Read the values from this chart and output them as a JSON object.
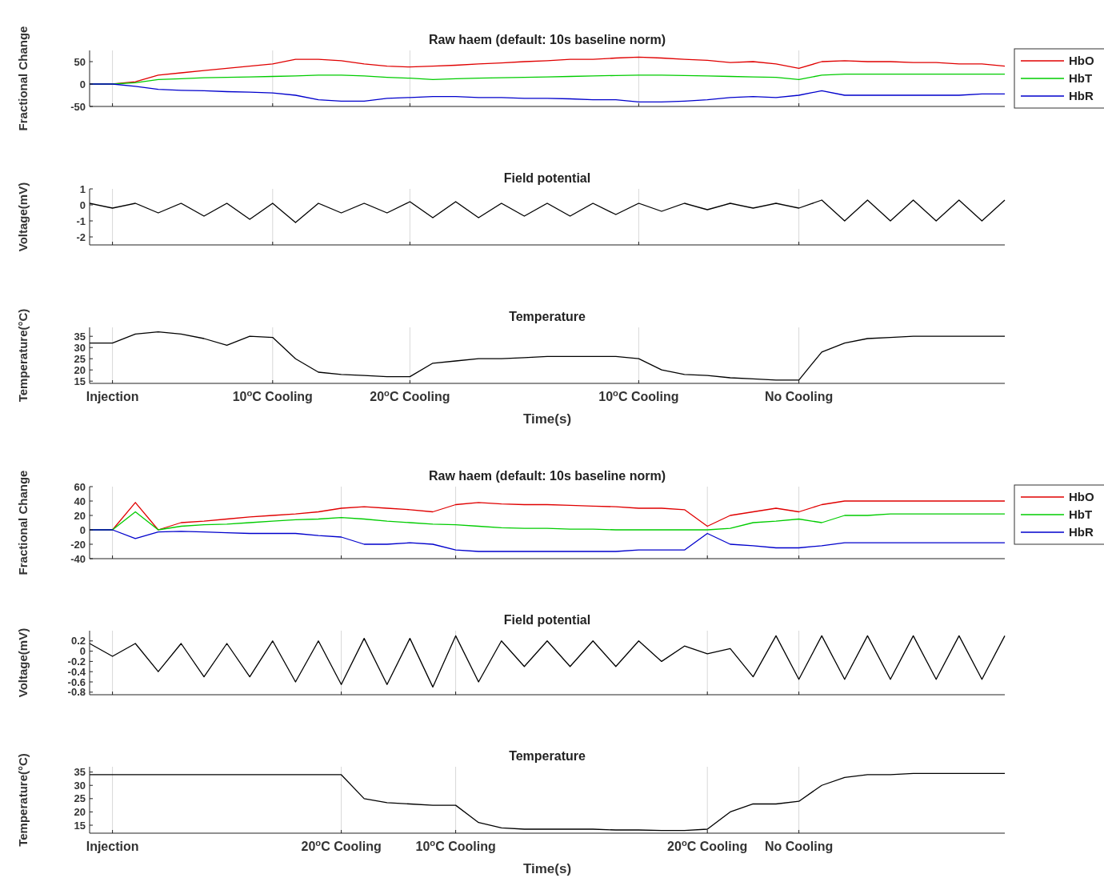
{
  "chart_data": [
    {
      "type": "line",
      "title": "Raw haem (default: 10s baseline norm)",
      "ylabel": "Fractional Change",
      "ylim": [
        -50,
        75
      ],
      "yticks": [
        -50,
        0,
        50
      ],
      "tick_labels": "y",
      "grid": "x",
      "legend": "right",
      "categories": [
        null,
        null,
        null,
        null,
        null,
        null,
        null,
        null,
        null,
        null,
        null,
        null,
        null,
        null,
        null,
        null,
        null,
        null,
        null,
        null,
        null,
        null,
        null,
        null,
        null,
        null,
        null,
        null,
        null,
        null,
        null,
        null,
        null,
        null,
        null,
        null,
        null,
        null,
        null,
        null,
        null
      ],
      "series": [
        {
          "name": "HbO",
          "color": "#e00000",
          "values": [
            0,
            0,
            5,
            20,
            25,
            30,
            35,
            40,
            45,
            55,
            55,
            52,
            45,
            40,
            38,
            40,
            42,
            45,
            47,
            50,
            52,
            55,
            55,
            58,
            60,
            58,
            55,
            53,
            48,
            50,
            45,
            35,
            50,
            52,
            50,
            50,
            48,
            48,
            45,
            45,
            40
          ]
        },
        {
          "name": "HbT",
          "color": "#00cc00",
          "values": [
            0,
            0,
            3,
            10,
            12,
            14,
            15,
            16,
            17,
            18,
            20,
            20,
            18,
            15,
            13,
            10,
            12,
            13,
            14,
            15,
            16,
            17,
            18,
            19,
            20,
            20,
            19,
            18,
            17,
            16,
            15,
            10,
            20,
            22,
            22,
            22,
            22,
            22,
            22,
            22,
            22
          ]
        },
        {
          "name": "HbR",
          "color": "#0000cc",
          "values": [
            0,
            0,
            -5,
            -12,
            -14,
            -15,
            -17,
            -18,
            -20,
            -25,
            -35,
            -38,
            -38,
            -32,
            -30,
            -28,
            -28,
            -30,
            -30,
            -32,
            -32,
            -33,
            -35,
            -35,
            -40,
            -40,
            -38,
            -35,
            -30,
            -28,
            -30,
            -25,
            -15,
            -25,
            -25,
            -25,
            -25,
            -25,
            -25,
            -22,
            -22
          ]
        }
      ]
    },
    {
      "type": "line",
      "title": "Field potential",
      "ylabel": "Voltage(mV)",
      "ylim": [
        -2.5,
        1
      ],
      "yticks": [
        -2,
        -1,
        0,
        1
      ],
      "tick_labels": "y",
      "grid": "x",
      "categories": [
        null,
        null,
        null,
        null,
        null,
        null,
        null,
        null,
        null,
        null,
        null,
        null,
        null,
        null,
        null,
        null,
        null,
        null,
        null,
        null,
        null,
        null,
        null,
        null,
        null,
        null,
        null,
        null,
        null,
        null,
        null,
        null,
        null,
        null,
        null,
        null,
        null,
        null,
        null,
        null,
        null
      ],
      "series": [
        {
          "color": "#000000",
          "values": [
            0.1,
            -0.2,
            0.1,
            -0.5,
            0.1,
            -0.7,
            0.1,
            -0.9,
            0.1,
            -1.1,
            0.1,
            -0.5,
            0.1,
            -0.5,
            0.2,
            -0.8,
            0.2,
            -0.8,
            0.1,
            -0.7,
            0.1,
            -0.7,
            0.1,
            -0.6,
            0.1,
            -0.4,
            0.1,
            -0.3,
            0.1,
            -0.2,
            0.1,
            -0.2,
            0.3,
            -1,
            0.3,
            -1,
            0.3,
            -1,
            0.3,
            -1,
            0.3
          ]
        }
      ]
    },
    {
      "type": "line",
      "title": "Temperature",
      "ylabel": "Temperature(°C)",
      "xlabel": "Time(s)",
      "ylim": [
        14,
        39
      ],
      "yticks": [
        15,
        20,
        25,
        30,
        35
      ],
      "grid": "x",
      "categories": [
        null,
        "Injection",
        null,
        null,
        null,
        null,
        null,
        null,
        "10$^{o}$C Cooling",
        null,
        null,
        null,
        null,
        null,
        "20$^{o}$C Cooling",
        null,
        null,
        null,
        null,
        null,
        null,
        null,
        null,
        null,
        "10$^{o}$C Cooling",
        null,
        null,
        null,
        null,
        null,
        null,
        "No Cooling",
        null,
        null,
        null,
        null,
        null,
        null,
        null,
        null,
        null
      ],
      "series": [
        {
          "color": "#000000",
          "values": [
            32,
            32,
            36,
            37,
            36,
            34,
            31,
            35,
            34.5,
            25,
            19,
            18,
            17.5,
            17,
            17,
            23,
            24,
            25,
            25,
            25.5,
            26,
            26,
            26,
            26,
            25,
            20,
            18,
            17.5,
            16.5,
            16,
            15.5,
            15.5,
            28,
            32,
            34,
            34.5,
            35,
            35,
            35,
            35,
            35
          ]
        }
      ]
    },
    {
      "type": "line",
      "title": "Raw haem (default: 10s baseline norm)",
      "ylabel": "Fractional Change",
      "ylim": [
        -40,
        60
      ],
      "yticks": [
        -40,
        -20,
        0,
        20,
        40,
        60
      ],
      "tick_labels": "y",
      "grid": "x",
      "legend": "right",
      "categories": [
        null,
        null,
        null,
        null,
        null,
        null,
        null,
        null,
        null,
        null,
        null,
        null,
        null,
        null,
        null,
        null,
        null,
        null,
        null,
        null,
        null,
        null,
        null,
        null,
        null,
        null,
        null,
        null,
        null,
        null,
        null,
        null,
        null,
        null,
        null,
        null,
        null,
        null,
        null,
        null,
        null
      ],
      "series": [
        {
          "name": "HbO",
          "color": "#e00000",
          "values": [
            0,
            0,
            38,
            0,
            10,
            12,
            15,
            18,
            20,
            22,
            25,
            30,
            32,
            30,
            28,
            25,
            35,
            38,
            36,
            35,
            35,
            34,
            33,
            32,
            30,
            30,
            28,
            5,
            20,
            25,
            30,
            25,
            35,
            40,
            40,
            40,
            40,
            40,
            40,
            40,
            40
          ]
        },
        {
          "name": "HbT",
          "color": "#00cc00",
          "values": [
            0,
            0,
            25,
            0,
            5,
            7,
            8,
            10,
            12,
            14,
            15,
            17,
            15,
            12,
            10,
            8,
            7,
            5,
            3,
            2,
            2,
            1,
            1,
            0,
            0,
            0,
            0,
            0,
            2,
            10,
            12,
            15,
            10,
            20,
            20,
            22,
            22,
            22,
            22,
            22,
            22
          ]
        },
        {
          "name": "HbR",
          "color": "#0000cc",
          "values": [
            0,
            0,
            -12,
            -3,
            -2,
            -3,
            -4,
            -5,
            -5,
            -5,
            -8,
            -10,
            -20,
            -20,
            -18,
            -20,
            -28,
            -30,
            -30,
            -30,
            -30,
            -30,
            -30,
            -30,
            -28,
            -28,
            -28,
            -5,
            -20,
            -22,
            -25,
            -25,
            -22,
            -18,
            -18,
            -18,
            -18,
            -18,
            -18,
            -18,
            -18
          ]
        }
      ]
    },
    {
      "type": "line",
      "title": "Field potential",
      "ylabel": "Voltage(mV)",
      "ylim": [
        -0.85,
        0.4
      ],
      "yticks": [
        -0.8,
        -0.6,
        -0.4,
        -0.2,
        0,
        0.2
      ],
      "tick_labels": "y",
      "grid": "x",
      "categories": [
        null,
        null,
        null,
        null,
        null,
        null,
        null,
        null,
        null,
        null,
        null,
        null,
        null,
        null,
        null,
        null,
        null,
        null,
        null,
        null,
        null,
        null,
        null,
        null,
        null,
        null,
        null,
        null,
        null,
        null,
        null,
        null,
        null,
        null,
        null,
        null,
        null,
        null,
        null,
        null,
        null
      ],
      "series": [
        {
          "color": "#000000",
          "values": [
            0.15,
            -0.1,
            0.15,
            -0.4,
            0.15,
            -0.5,
            0.15,
            -0.5,
            0.2,
            -0.6,
            0.2,
            -0.65,
            0.25,
            -0.65,
            0.25,
            -0.7,
            0.3,
            -0.6,
            0.2,
            -0.3,
            0.2,
            -0.3,
            0.2,
            -0.3,
            0.2,
            -0.2,
            0.1,
            -0.05,
            0.05,
            -0.5,
            0.3,
            -0.55,
            0.3,
            -0.55,
            0.3,
            -0.55,
            0.3,
            -0.55,
            0.3,
            -0.55,
            0.3
          ]
        }
      ]
    },
    {
      "type": "line",
      "title": "Temperature",
      "ylabel": "Temperature(°C)",
      "xlabel": "Time(s)",
      "ylim": [
        12,
        37
      ],
      "yticks": [
        15,
        20,
        25,
        30,
        35
      ],
      "grid": "x",
      "categories": [
        null,
        "Injection",
        null,
        null,
        null,
        null,
        null,
        null,
        null,
        null,
        null,
        "20$^{o}$C Cooling",
        null,
        null,
        null,
        null,
        "10$^{o}$C Cooling",
        null,
        null,
        null,
        null,
        null,
        null,
        null,
        null,
        null,
        null,
        "20$^{o}$C Cooling",
        null,
        null,
        null,
        "No Cooling",
        null,
        null,
        null,
        null,
        null,
        null,
        null,
        null,
        null
      ],
      "series": [
        {
          "color": "#000000",
          "values": [
            34,
            34,
            34,
            34,
            34,
            34,
            34,
            34,
            34,
            34,
            34,
            34,
            25,
            23.5,
            23,
            22.5,
            22.5,
            16,
            14,
            13.5,
            13.5,
            13.5,
            13.5,
            13.2,
            13.2,
            13,
            13,
            13.5,
            20,
            23,
            23,
            24,
            30,
            33,
            34,
            34,
            34.5,
            34.5,
            34.5,
            34.5,
            34.5
          ]
        }
      ]
    }
  ]
}
